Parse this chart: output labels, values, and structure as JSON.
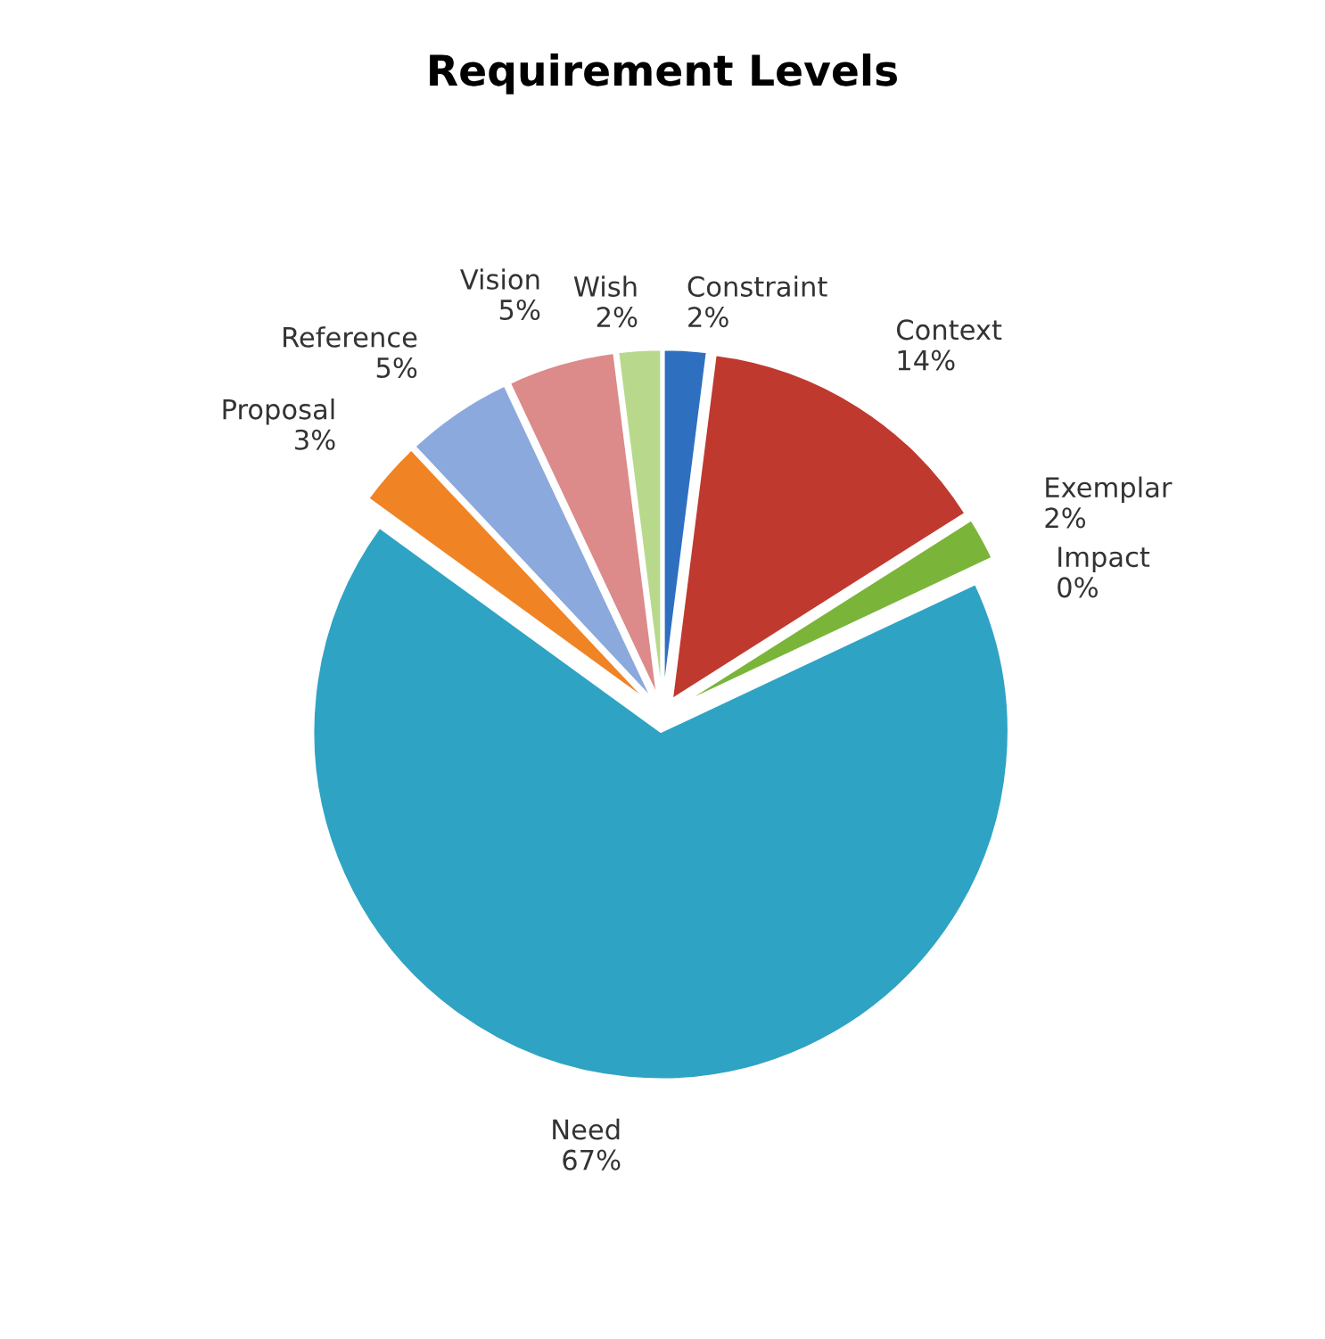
{
  "chart_data": {
    "type": "pie",
    "title": "Requirement Levels",
    "categories": [
      "Constraint",
      "Context",
      "Exemplar",
      "Impact",
      "Need",
      "Proposal",
      "Reference",
      "Vision",
      "Wish"
    ],
    "values": [
      2,
      14,
      2,
      0,
      67,
      3,
      5,
      5,
      2
    ],
    "value_labels": [
      "2%",
      "14%",
      "2%",
      "0%",
      "67%",
      "3%",
      "5%",
      "5%",
      "2%"
    ],
    "colors": [
      "#2e6fc0",
      "#c0392f",
      "#7ab53a",
      "#6a8fc7",
      "#2fa3c4",
      "#f08424",
      "#8ba9dc",
      "#dc8a8a",
      "#b8d98c"
    ],
    "legend": false
  }
}
